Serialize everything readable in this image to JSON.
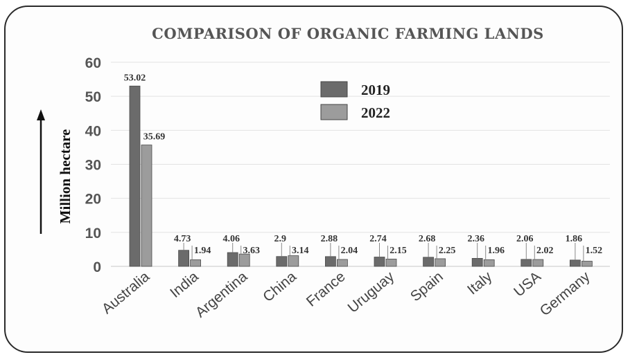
{
  "chart_data": {
    "type": "bar",
    "title": "COMPARISON OF ORGANIC FARMING LANDS",
    "ylabel": "Million hectare",
    "xlabel": "",
    "categories": [
      "Australia",
      "India",
      "Argentina",
      "China",
      "France",
      "Uruguay",
      "Spain",
      "Italy",
      "USA",
      "Germany"
    ],
    "series": [
      {
        "name": "2019",
        "color": "#6b6b6b",
        "values": [
          53.02,
          4.73,
          4.06,
          2.9,
          2.88,
          2.74,
          2.68,
          2.36,
          2.06,
          1.86
        ]
      },
      {
        "name": "2022",
        "color": "#9c9c9c",
        "values": [
          35.69,
          1.94,
          3.63,
          3.14,
          2.04,
          2.15,
          2.25,
          1.96,
          2.02,
          1.52
        ]
      }
    ],
    "value_labels": [
      [
        "53.02",
        "4.73",
        "4.06",
        "2.9",
        "2.88",
        "2.74",
        "2.68",
        "2.36",
        "2.06",
        "1.86"
      ],
      [
        "35.69",
        "1.94",
        "3.63",
        "3.14",
        "2.04",
        "2.15",
        "2.25",
        "1.96",
        "2.02",
        "1.52"
      ]
    ],
    "ylim": [
      0,
      60
    ],
    "yticks": [
      "0",
      "10",
      "20",
      "30",
      "40",
      "50",
      "60"
    ],
    "grid": true,
    "legend_position": "top-center"
  }
}
